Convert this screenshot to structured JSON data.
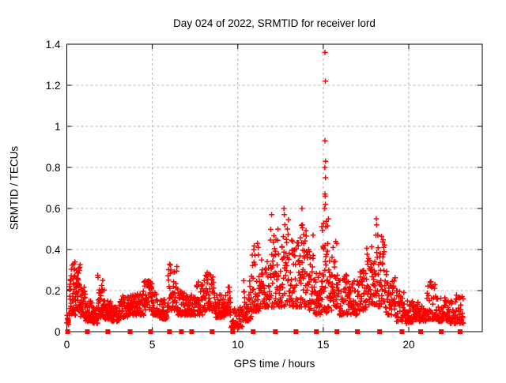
{
  "chart_data": {
    "type": "scatter",
    "title": "Day 024 of 2022, SRMTID for receiver lord",
    "xlabel": "GPS time / hours",
    "ylabel": "SRMTID / TECUs",
    "xlim": [
      0,
      24.3
    ],
    "ylim": [
      0,
      1.4
    ],
    "xticks": [
      0,
      5,
      10,
      15,
      20
    ],
    "xtick_labels": [
      "0",
      "5",
      "10",
      "15",
      "20"
    ],
    "yticks": [
      0,
      0.2,
      0.4,
      0.6,
      0.8,
      1.0,
      1.2,
      1.4
    ],
    "ytick_labels": [
      "0",
      "0.2",
      "0.4",
      "0.6",
      "0.8",
      "1",
      "1.2",
      "1.4"
    ],
    "grid": true,
    "grid_color": "#b4b4b4",
    "marker": "plus",
    "marker_color": "#ff0000",
    "border_color": "#000000",
    "seed": 20220124,
    "series": [
      {
        "name": "srmtid",
        "marker": "plus",
        "clusters_format": [
          "x_start_hr",
          "x_end_hr",
          "y_min",
          "y_max",
          "n_points"
        ],
        "clusters": [
          [
            0.0,
            0.15,
            0.03,
            0.12,
            12
          ],
          [
            0.15,
            0.5,
            0.08,
            0.36,
            42
          ],
          [
            0.5,
            0.8,
            0.1,
            0.33,
            36
          ],
          [
            0.8,
            1.1,
            0.07,
            0.22,
            30
          ],
          [
            1.1,
            1.5,
            0.05,
            0.15,
            36
          ],
          [
            1.5,
            1.8,
            0.04,
            0.12,
            30
          ],
          [
            1.8,
            2.2,
            0.07,
            0.28,
            40
          ],
          [
            2.2,
            2.6,
            0.06,
            0.16,
            36
          ],
          [
            2.6,
            3.1,
            0.05,
            0.14,
            42
          ],
          [
            3.1,
            3.6,
            0.07,
            0.18,
            42
          ],
          [
            3.6,
            4.1,
            0.08,
            0.18,
            42
          ],
          [
            4.1,
            4.5,
            0.08,
            0.2,
            36
          ],
          [
            4.5,
            5.0,
            0.1,
            0.28,
            42
          ],
          [
            5.0,
            5.4,
            0.08,
            0.2,
            36
          ],
          [
            5.4,
            5.9,
            0.06,
            0.16,
            38
          ],
          [
            5.9,
            6.5,
            0.1,
            0.33,
            46
          ],
          [
            6.5,
            7.0,
            0.08,
            0.2,
            40
          ],
          [
            7.0,
            7.5,
            0.08,
            0.18,
            38
          ],
          [
            7.5,
            8.1,
            0.08,
            0.25,
            44
          ],
          [
            8.1,
            8.7,
            0.1,
            0.29,
            44
          ],
          [
            8.7,
            9.2,
            0.07,
            0.18,
            38
          ],
          [
            9.2,
            9.6,
            0.08,
            0.22,
            34
          ],
          [
            9.6,
            10.3,
            0.02,
            0.12,
            46
          ],
          [
            10.3,
            10.8,
            0.05,
            0.25,
            38
          ],
          [
            10.8,
            11.3,
            0.1,
            0.43,
            42
          ],
          [
            11.3,
            11.9,
            0.12,
            0.35,
            46
          ],
          [
            11.9,
            12.4,
            0.12,
            0.5,
            42
          ],
          [
            12.4,
            13.0,
            0.12,
            0.55,
            46
          ],
          [
            13.0,
            13.6,
            0.12,
            0.45,
            46
          ],
          [
            13.6,
            14.0,
            0.12,
            0.52,
            38
          ],
          [
            14.0,
            14.5,
            0.1,
            0.4,
            40
          ],
          [
            14.5,
            14.9,
            0.08,
            0.3,
            34
          ],
          [
            14.9,
            15.3,
            0.08,
            0.55,
            40
          ],
          [
            15.3,
            15.8,
            0.1,
            0.45,
            40
          ],
          [
            15.8,
            16.4,
            0.08,
            0.28,
            44
          ],
          [
            16.4,
            17.0,
            0.08,
            0.25,
            44
          ],
          [
            17.0,
            17.5,
            0.1,
            0.3,
            40
          ],
          [
            17.5,
            18.1,
            0.12,
            0.42,
            46
          ],
          [
            18.1,
            18.6,
            0.12,
            0.48,
            42
          ],
          [
            18.6,
            19.2,
            0.08,
            0.3,
            44
          ],
          [
            19.2,
            19.8,
            0.05,
            0.2,
            42
          ],
          [
            19.8,
            20.4,
            0.04,
            0.15,
            42
          ],
          [
            20.4,
            21.0,
            0.05,
            0.15,
            42
          ],
          [
            21.0,
            21.6,
            0.06,
            0.25,
            42
          ],
          [
            21.6,
            22.2,
            0.05,
            0.18,
            42
          ],
          [
            22.2,
            22.7,
            0.04,
            0.15,
            38
          ],
          [
            22.7,
            23.2,
            0.04,
            0.18,
            38
          ]
        ],
        "outliers": [
          [
            15.1,
            1.36
          ],
          [
            15.12,
            1.22
          ],
          [
            15.1,
            0.93
          ],
          [
            15.13,
            0.83
          ],
          [
            15.09,
            0.8
          ],
          [
            15.13,
            0.75
          ],
          [
            15.1,
            0.67
          ],
          [
            15.11,
            0.66
          ],
          [
            15.12,
            0.62
          ],
          [
            15.08,
            0.6
          ],
          [
            13.75,
            0.6
          ],
          [
            12.7,
            0.6
          ],
          [
            12.72,
            0.57
          ],
          [
            11.98,
            0.57
          ],
          [
            12.75,
            0.52
          ],
          [
            13.78,
            0.52
          ],
          [
            12.9,
            0.5
          ],
          [
            18.1,
            0.55
          ],
          [
            18.12,
            0.52
          ],
          [
            18.08,
            0.47
          ],
          [
            14.4,
            0.47
          ],
          [
            13.2,
            0.44
          ],
          [
            11.15,
            0.43
          ],
          [
            11.2,
            0.41
          ],
          [
            14.15,
            0.4
          ]
        ]
      },
      {
        "name": "zero-line-markers",
        "marker": "square",
        "y": 0,
        "x": [
          0.05,
          1.2,
          2.4,
          3.7,
          4.9,
          6.0,
          6.7,
          7.3,
          8.5,
          9.7,
          10.9,
          12.2,
          13.4,
          14.6,
          15.8,
          17.0,
          18.3,
          19.6,
          20.7,
          21.9,
          23.0
        ]
      }
    ]
  }
}
